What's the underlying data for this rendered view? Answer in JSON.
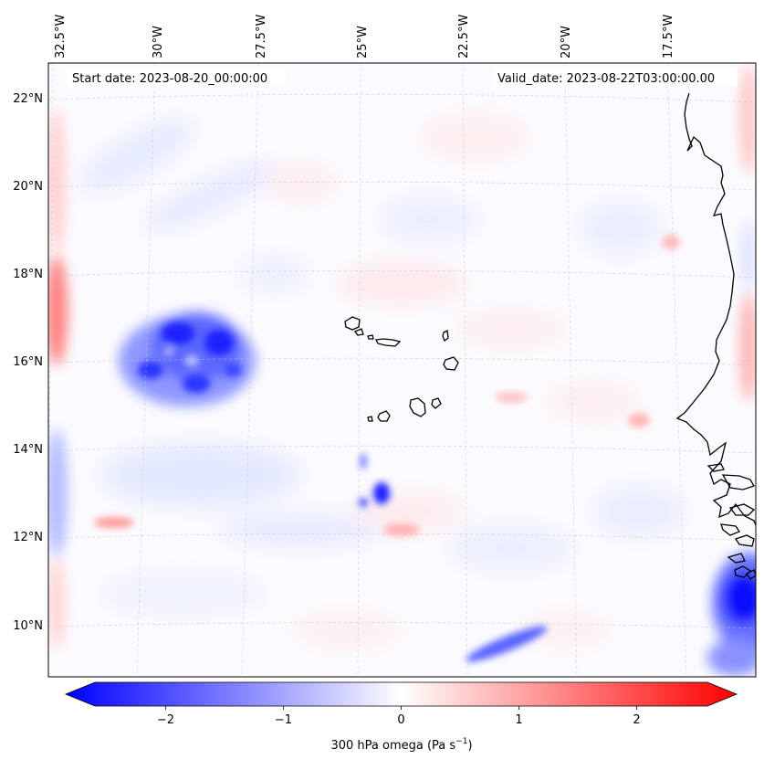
{
  "map": {
    "header": {
      "start_date": "Start date: 2023-08-20_00:00:00",
      "valid_date": "Valid_date: 2023-08-22T03:00:00.00"
    },
    "longitude_labels": [
      "32.5°W",
      "30°W",
      "27.5°W",
      "25°W",
      "22.5°W",
      "20°W",
      "17.5°W"
    ],
    "latitude_labels": [
      "22°N",
      "20°N",
      "18°N",
      "16°N",
      "14°N",
      "12°N",
      "10°N"
    ],
    "colorbar": {
      "ticks": [
        "−2",
        "−1",
        "0",
        "1",
        "2"
      ],
      "label": "300 hPa omega (Pa s",
      "label_sup": "−1",
      "label_end": ")",
      "min": -2.6,
      "max": 2.6
    },
    "colors": {
      "negative": "#0000ff",
      "positive": "#ff0000",
      "coast": "#000000",
      "grid": "#c0c0c0"
    }
  }
}
